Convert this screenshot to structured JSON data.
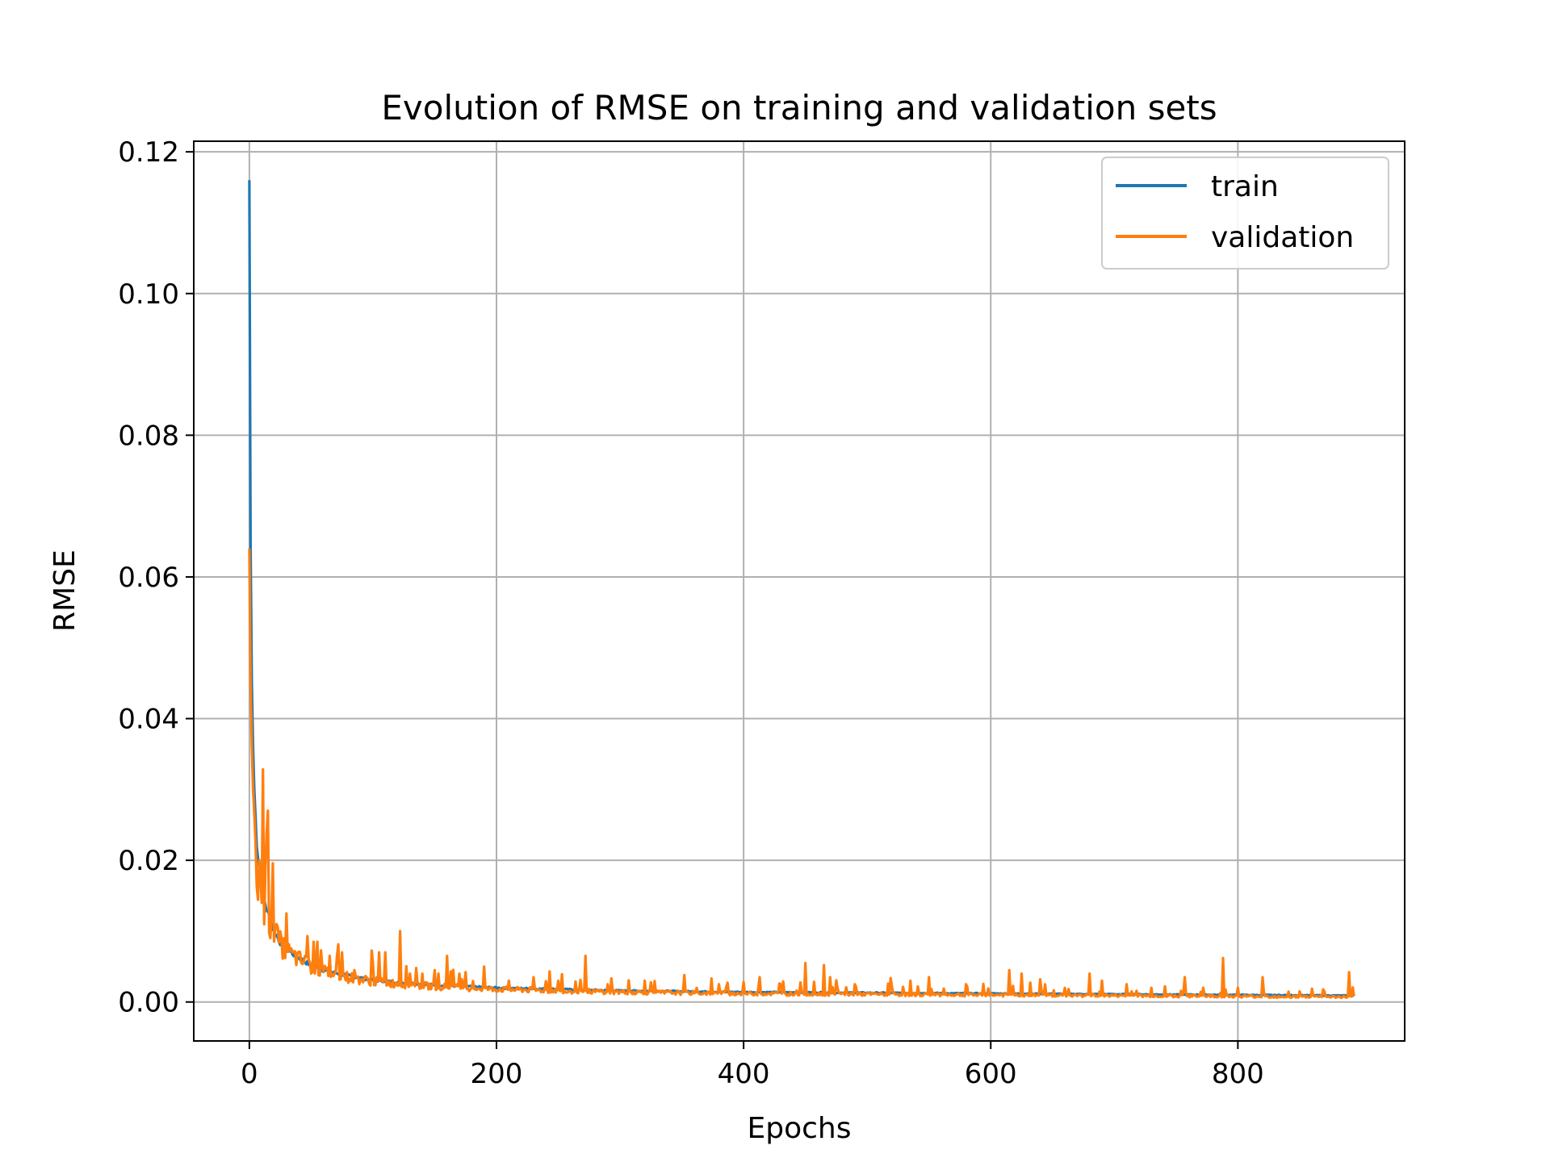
{
  "chart_data": {
    "type": "line",
    "title": "Evolution of RMSE on training and validation sets",
    "xlabel": "Epochs",
    "ylabel": "RMSE",
    "xlim": [
      -45,
      935
    ],
    "ylim": [
      -0.0055,
      0.1215
    ],
    "xticks": [
      0,
      200,
      400,
      600,
      800
    ],
    "xtick_labels": [
      "0",
      "200",
      "400",
      "600",
      "800"
    ],
    "yticks": [
      0.0,
      0.02,
      0.04,
      0.06,
      0.08,
      0.1,
      0.12
    ],
    "ytick_labels": [
      "0.00",
      "0.02",
      "0.04",
      "0.06",
      "0.08",
      "0.10",
      "0.12"
    ],
    "grid": true,
    "legend_position": "top-right",
    "num_epochs": 894,
    "series": [
      {
        "name": "train",
        "color": "#1f77b4",
        "x": [
          0,
          1,
          2,
          3,
          4,
          5,
          6,
          8,
          10,
          12,
          15,
          20,
          25,
          30,
          40,
          50,
          60,
          80,
          100,
          125,
          150,
          200,
          250,
          300,
          400,
          500,
          600,
          700,
          800,
          894
        ],
        "y": [
          0.116,
          0.064,
          0.045,
          0.036,
          0.03,
          0.026,
          0.023,
          0.019,
          0.016,
          0.0145,
          0.0125,
          0.01,
          0.0085,
          0.0075,
          0.0062,
          0.0052,
          0.0045,
          0.0037,
          0.0031,
          0.0027,
          0.0024,
          0.002,
          0.0018,
          0.0016,
          0.0014,
          0.0013,
          0.0012,
          0.0011,
          0.001,
          0.0009
        ]
      },
      {
        "name": "validation",
        "color": "#ff7f0e",
        "x": [
          0,
          1,
          2,
          3,
          4,
          5,
          6,
          8,
          10,
          12,
          15,
          20,
          25,
          30,
          40,
          50,
          60,
          80,
          100,
          125,
          150,
          200,
          250,
          300,
          400,
          500,
          600,
          700,
          800,
          894
        ],
        "y": [
          0.064,
          0.045,
          0.036,
          0.03,
          0.026,
          0.023,
          0.02,
          0.017,
          0.015,
          0.013,
          0.0115,
          0.0095,
          0.0082,
          0.0072,
          0.006,
          0.005,
          0.0043,
          0.0035,
          0.0029,
          0.0025,
          0.0022,
          0.0018,
          0.0016,
          0.0014,
          0.0012,
          0.0011,
          0.001,
          0.0009,
          0.0008,
          0.0007
        ],
        "spikes": [
          [
            8,
            0.02
          ],
          [
            10,
            0.014
          ],
          [
            13,
            0.019
          ],
          [
            15,
            0.027
          ],
          [
            18,
            0.013
          ],
          [
            22,
            0.011
          ],
          [
            26,
            0.009
          ],
          [
            30,
            0.0125
          ],
          [
            35,
            0.007
          ],
          [
            45,
            0.0065
          ],
          [
            55,
            0.0085
          ],
          [
            65,
            0.0065
          ],
          [
            75,
            0.007
          ],
          [
            85,
            0.0045
          ],
          [
            100,
            0.0055
          ],
          [
            105,
            0.007
          ],
          [
            110,
            0.007
          ],
          [
            122,
            0.01
          ],
          [
            130,
            0.004
          ],
          [
            140,
            0.004
          ],
          [
            150,
            0.0045
          ],
          [
            160,
            0.0065
          ],
          [
            170,
            0.004
          ],
          [
            190,
            0.005
          ],
          [
            210,
            0.003
          ],
          [
            230,
            0.0035
          ],
          [
            250,
            0.003
          ],
          [
            272,
            0.0065
          ],
          [
            290,
            0.0025
          ],
          [
            320,
            0.003
          ],
          [
            352,
            0.0038
          ],
          [
            380,
            0.0025
          ],
          [
            400,
            0.0028
          ],
          [
            413,
            0.0035
          ],
          [
            430,
            0.0025
          ],
          [
            450,
            0.0055
          ],
          [
            465,
            0.0052
          ],
          [
            470,
            0.0035
          ],
          [
            490,
            0.0025
          ],
          [
            520,
            0.0022
          ],
          [
            535,
            0.003
          ],
          [
            550,
            0.0035
          ],
          [
            580,
            0.0025
          ],
          [
            615,
            0.0045
          ],
          [
            625,
            0.004
          ],
          [
            640,
            0.0032
          ],
          [
            660,
            0.002
          ],
          [
            680,
            0.004
          ],
          [
            690,
            0.003
          ],
          [
            710,
            0.0025
          ],
          [
            730,
            0.002
          ],
          [
            757,
            0.0035
          ],
          [
            788,
            0.0062
          ],
          [
            800,
            0.002
          ],
          [
            820,
            0.0035
          ],
          [
            850,
            0.0015
          ],
          [
            870,
            0.0015
          ],
          [
            890,
            0.0042
          ]
        ]
      }
    ]
  }
}
